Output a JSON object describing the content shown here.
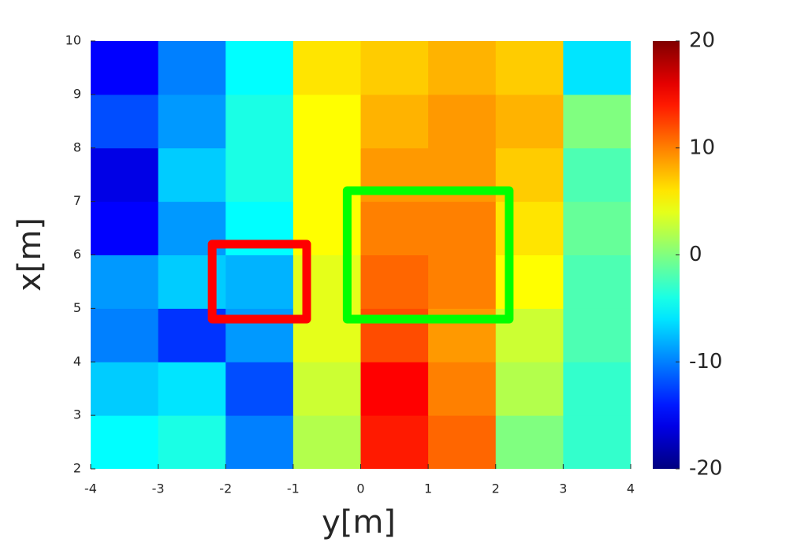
{
  "chart_data": {
    "type": "heatmap",
    "x_label": "y[m]",
    "y_label": "x[m]",
    "x": [
      -3.5,
      -2.5,
      -1.5,
      -0.5,
      0.5,
      1.5,
      2.5,
      3.5
    ],
    "y": [
      2.5,
      3.5,
      4.5,
      5.5,
      6.5,
      7.5,
      8.5,
      9.5
    ],
    "z": [
      [
        -5,
        -4,
        -10,
        2,
        14,
        11,
        0,
        -3
      ],
      [
        -7,
        -6,
        -12,
        3,
        15,
        10,
        2,
        -3
      ],
      [
        -10,
        -13,
        -9,
        4,
        12,
        9,
        3,
        -2
      ],
      [
        -9,
        -7,
        -8,
        4,
        11,
        10,
        5,
        -2
      ],
      [
        -15,
        -9,
        -5,
        5,
        10,
        10,
        6,
        -1
      ],
      [
        -16,
        -7,
        -4,
        5,
        9,
        9,
        7,
        -2
      ],
      [
        -12,
        -9,
        -4,
        5,
        8,
        9,
        8,
        0
      ],
      [
        -15,
        -10,
        -5,
        6,
        7,
        8,
        7,
        -6
      ]
    ],
    "xlim": [
      -4,
      4
    ],
    "xticks": [
      -4,
      -3,
      -2,
      -1,
      0,
      1,
      2,
      3,
      4
    ],
    "ylim": [
      2,
      10
    ],
    "yticks": [
      2,
      3,
      4,
      5,
      6,
      7,
      8,
      9,
      10
    ],
    "clim": [
      -20,
      20
    ],
    "cticks": [
      -20,
      -10,
      0,
      10,
      20
    ],
    "colormap": "jet",
    "boxes": [
      {
        "color": "#ff0000",
        "x": [
          -2.2,
          -0.8
        ],
        "y": [
          4.8,
          6.2
        ]
      },
      {
        "color": "#00ff00",
        "x": [
          -0.2,
          2.2
        ],
        "y": [
          4.8,
          7.2
        ]
      }
    ]
  }
}
